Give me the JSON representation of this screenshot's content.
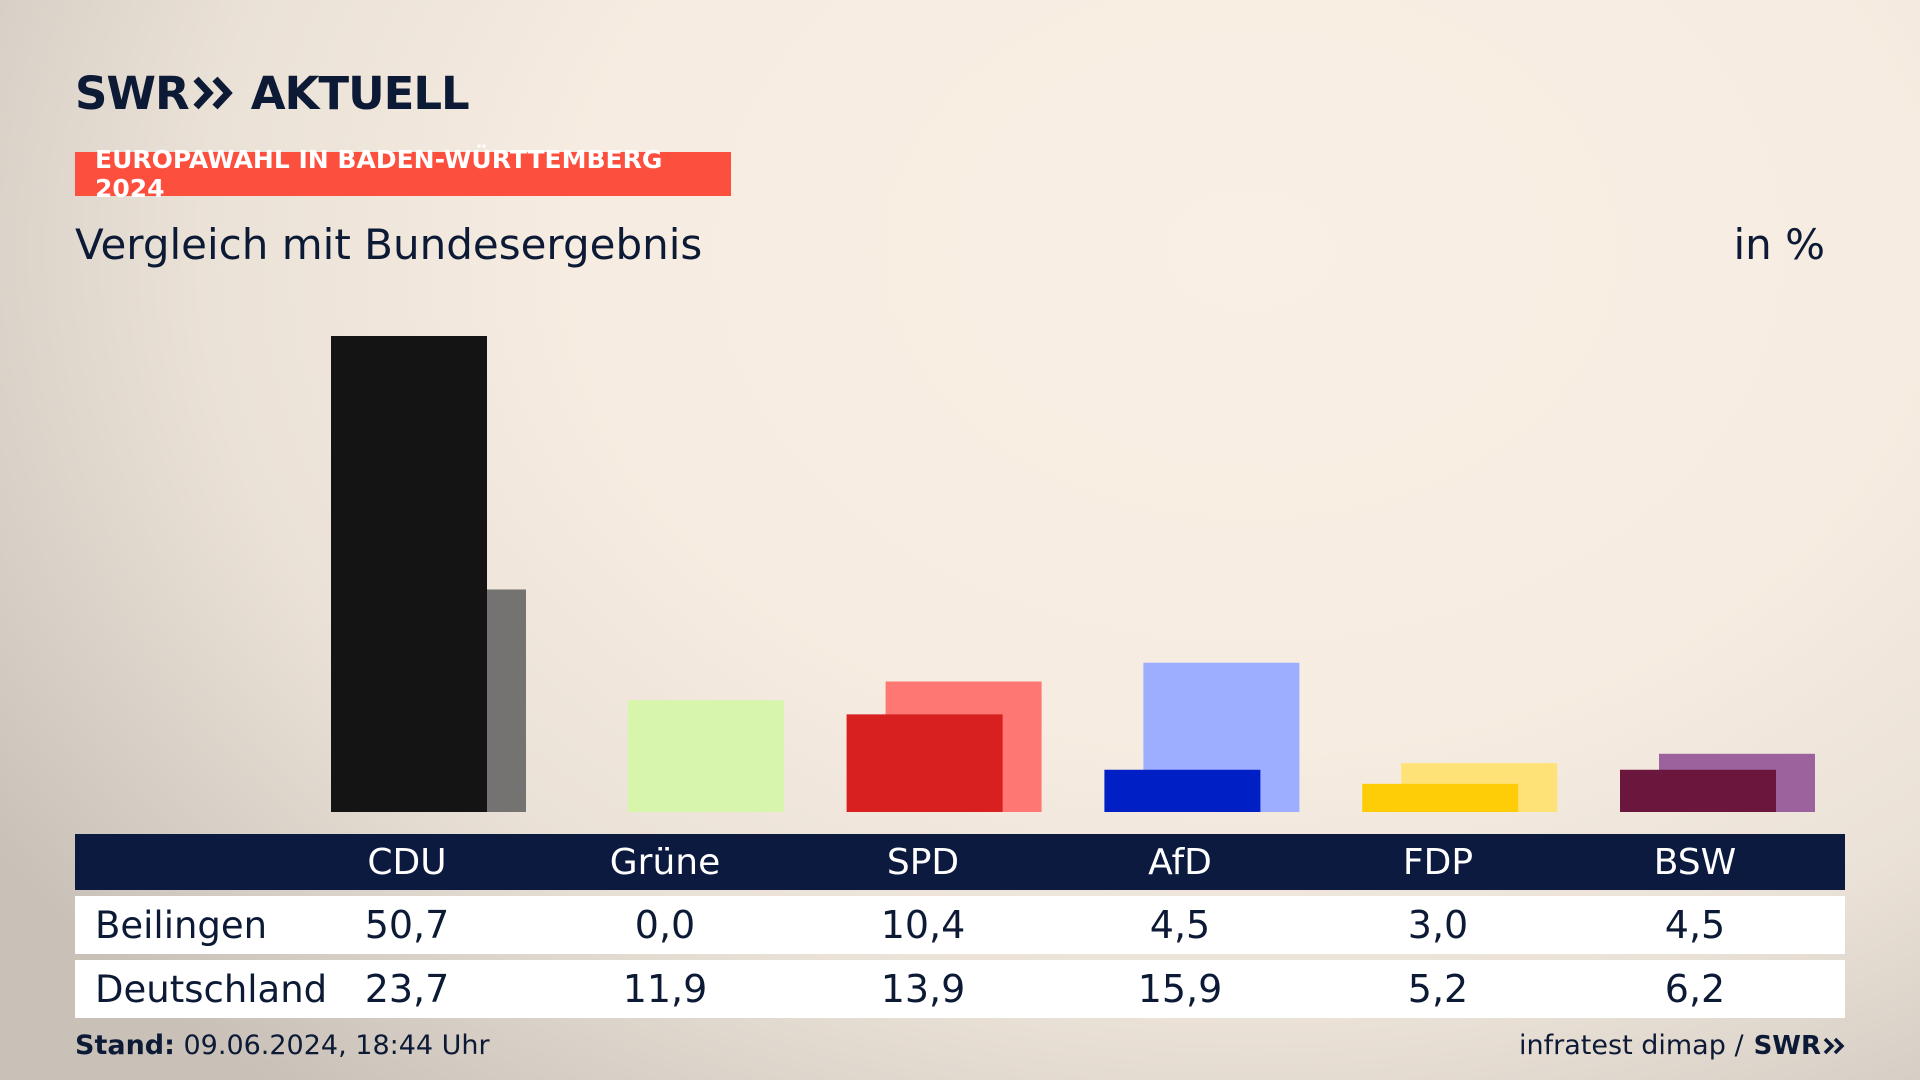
{
  "header": {
    "logo_text_left": "SWR",
    "logo_text_right": "AKTUELL",
    "banner": "EUROPAWAHL IN BADEN-WÜRTTEMBERG 2024",
    "subtitle": "Vergleich mit Bundesergebnis",
    "unit": "in %"
  },
  "colors": {
    "navy": "#0d1a3f",
    "banner": "#fd4f3d"
  },
  "chart_data": {
    "type": "bar",
    "title": "Vergleich mit Bundesergebnis",
    "ylabel": "in %",
    "categories": [
      "CDU",
      "Grüne",
      "SPD",
      "AfD",
      "FDP",
      "BSW"
    ],
    "series": [
      {
        "name": "Beilingen",
        "values": [
          50.7,
          0.0,
          10.4,
          4.5,
          3.0,
          4.5
        ],
        "colors": [
          "#141414",
          "#c8f29c",
          "#d7201f",
          "#0020c6",
          "#ffcd08",
          "#6b173d"
        ]
      },
      {
        "name": "Deutschland",
        "values": [
          23.7,
          11.9,
          13.9,
          15.9,
          5.2,
          6.2
        ],
        "colors": [
          "#757372",
          "#d8f6ab",
          "#fe7773",
          "#9dadff",
          "#ffe277",
          "#9c629d"
        ]
      }
    ],
    "ylim": [
      0,
      50.7
    ]
  },
  "table": {
    "headers": [
      "CDU",
      "Grüne",
      "SPD",
      "AfD",
      "FDP",
      "BSW"
    ],
    "rows": [
      {
        "label": "Beilingen",
        "values": [
          "50,7",
          "0,0",
          "10,4",
          "4,5",
          "3,0",
          "4,5"
        ]
      },
      {
        "label": "Deutschland",
        "values": [
          "23,7",
          "11,9",
          "13,9",
          "15,9",
          "5,2",
          "6,2"
        ]
      }
    ]
  },
  "footer": {
    "stand_label": "Stand:",
    "stand_value": " 09.06.2024, 18:44 Uhr",
    "source": "infratest dimap /",
    "source_logo": "SWR"
  }
}
